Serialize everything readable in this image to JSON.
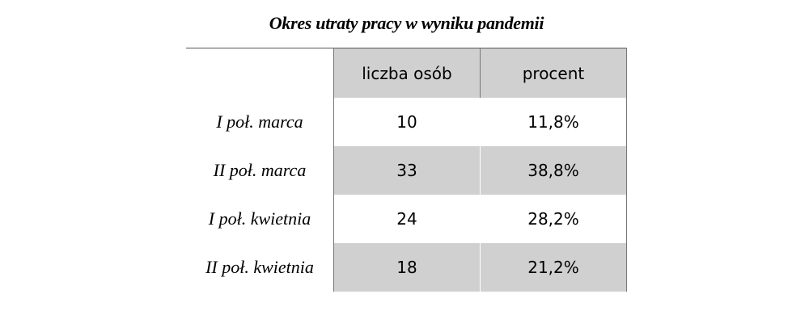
{
  "title": "Okres utraty pracy w wyniku pandemii",
  "table": {
    "headers": [
      "",
      "liczba osób",
      "procent"
    ],
    "rows": [
      {
        "label": "I poł. marca",
        "count": "10",
        "percent": "11,8%"
      },
      {
        "label": "II poł. marca",
        "count": "33",
        "percent": "38,8%"
      },
      {
        "label": "I poł. kwietnia",
        "count": "24",
        "percent": "28,2%"
      },
      {
        "label": "II poł. kwietnia",
        "count": "18",
        "percent": "21,2%"
      }
    ]
  },
  "colors": {
    "row_shade": "#d0d0d0",
    "row_plain": "#ffffff",
    "rule": "#555555"
  }
}
